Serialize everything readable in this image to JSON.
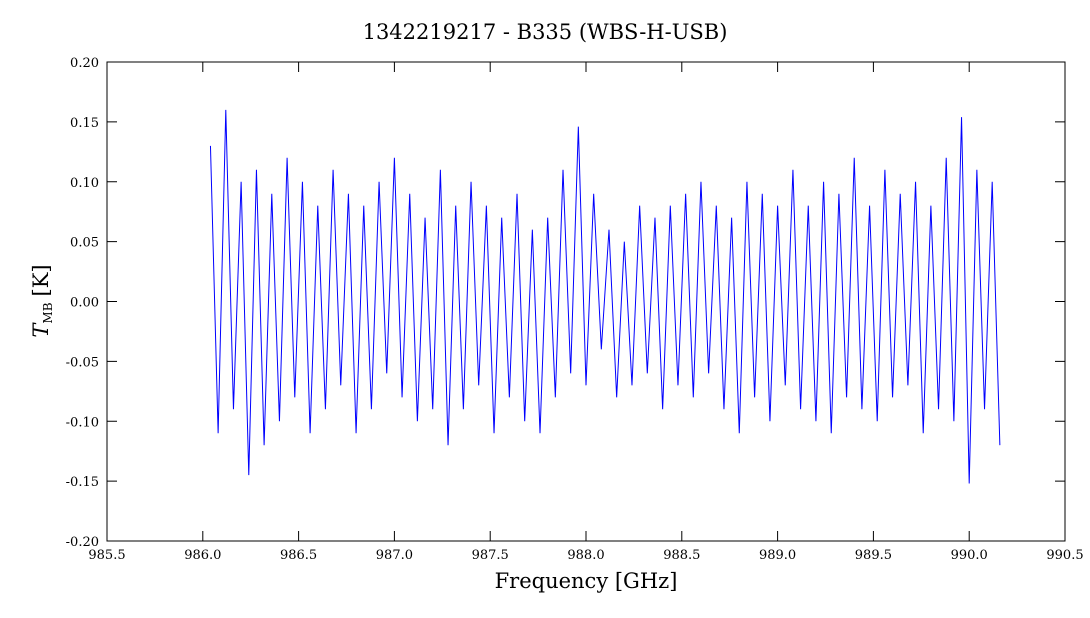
{
  "chart_data": {
    "type": "line",
    "title": "1342219217 - B335 (WBS-H-USB)",
    "xlabel": "Frequency [GHz]",
    "ylabel": {
      "symbol": "T",
      "subscript": "MB",
      "unit": "[K]"
    },
    "color": "#0000ff",
    "xlim": [
      985.5,
      990.5
    ],
    "ylim": [
      -0.2,
      0.2
    ],
    "xticks": [
      {
        "value": 985.5,
        "label": "985.5"
      },
      {
        "value": 986,
        "label": "986.0"
      },
      {
        "value": 986.5,
        "label": "986.5"
      },
      {
        "value": 987,
        "label": "987.0"
      },
      {
        "value": 987.5,
        "label": "987.5"
      },
      {
        "value": 988,
        "label": "988.0"
      },
      {
        "value": 988.5,
        "label": "988.5"
      },
      {
        "value": 989,
        "label": "989.0"
      },
      {
        "value": 989.5,
        "label": "989.5"
      },
      {
        "value": 990,
        "label": "990.0"
      },
      {
        "value": 990.5,
        "label": "990.5"
      }
    ],
    "yticks": [
      {
        "value": -0.2,
        "label": "-0.20"
      },
      {
        "value": -0.15,
        "label": "-0.15"
      },
      {
        "value": -0.1,
        "label": "-0.10"
      },
      {
        "value": -0.05,
        "label": "-0.05"
      },
      {
        "value": 0,
        "label": "0.00"
      },
      {
        "value": 0.05,
        "label": "0.05"
      },
      {
        "value": 0.1,
        "label": "0.10"
      },
      {
        "value": 0.15,
        "label": "0.15"
      },
      {
        "value": 0.2,
        "label": "0.20"
      }
    ],
    "x": [
      986.04,
      986.08,
      986.12,
      986.16,
      986.2,
      986.24,
      986.28,
      986.32,
      986.36,
      986.4,
      986.44,
      986.48,
      986.52,
      986.56,
      986.6,
      986.64,
      986.68,
      986.72,
      986.76,
      986.8,
      986.84,
      986.88,
      986.92,
      986.96,
      987.0,
      987.04,
      987.08,
      987.12,
      987.16,
      987.2,
      987.24,
      987.28,
      987.32,
      987.36,
      987.4,
      987.44,
      987.48,
      987.52,
      987.56,
      987.6,
      987.64,
      987.68,
      987.72,
      987.76,
      987.8,
      987.84,
      987.88,
      987.92,
      987.96,
      988.0,
      988.04,
      988.08,
      988.12,
      988.16,
      988.2,
      988.24,
      988.28,
      988.32,
      988.36,
      988.4,
      988.44,
      988.48,
      988.52,
      988.56,
      988.6,
      988.64,
      988.68,
      988.72,
      988.76,
      988.8,
      988.84,
      988.88,
      988.92,
      988.96,
      989.0,
      989.04,
      989.08,
      989.12,
      989.16,
      989.2,
      989.24,
      989.28,
      989.32,
      989.36,
      989.4,
      989.44,
      989.48,
      989.52,
      989.56,
      989.6,
      989.64,
      989.68,
      989.72,
      989.76,
      989.8,
      989.84,
      989.88,
      989.92,
      989.96,
      990.0,
      990.04,
      990.08,
      990.12,
      990.16
    ],
    "values": [
      0.13,
      -0.11,
      0.16,
      -0.09,
      0.1,
      -0.145,
      0.11,
      -0.12,
      0.09,
      -0.1,
      0.12,
      -0.08,
      0.1,
      -0.11,
      0.08,
      -0.09,
      0.11,
      -0.07,
      0.09,
      -0.11,
      0.08,
      -0.09,
      0.1,
      -0.06,
      0.12,
      -0.08,
      0.09,
      -0.1,
      0.07,
      -0.09,
      0.11,
      -0.12,
      0.08,
      -0.09,
      0.1,
      -0.07,
      0.08,
      -0.11,
      0.07,
      -0.08,
      0.09,
      -0.1,
      0.06,
      -0.11,
      0.07,
      -0.08,
      0.11,
      -0.06,
      0.146,
      -0.07,
      0.09,
      -0.04,
      0.06,
      -0.08,
      0.05,
      -0.07,
      0.08,
      -0.06,
      0.07,
      -0.09,
      0.08,
      -0.07,
      0.09,
      -0.08,
      0.1,
      -0.06,
      0.08,
      -0.09,
      0.07,
      -0.11,
      0.1,
      -0.08,
      0.09,
      -0.1,
      0.08,
      -0.07,
      0.11,
      -0.09,
      0.08,
      -0.1,
      0.1,
      -0.11,
      0.09,
      -0.08,
      0.12,
      -0.09,
      0.08,
      -0.1,
      0.11,
      -0.08,
      0.09,
      -0.07,
      0.1,
      -0.11,
      0.08,
      -0.09,
      0.12,
      -0.1,
      0.154,
      -0.152,
      0.11,
      -0.09,
      0.1,
      -0.12
    ]
  }
}
